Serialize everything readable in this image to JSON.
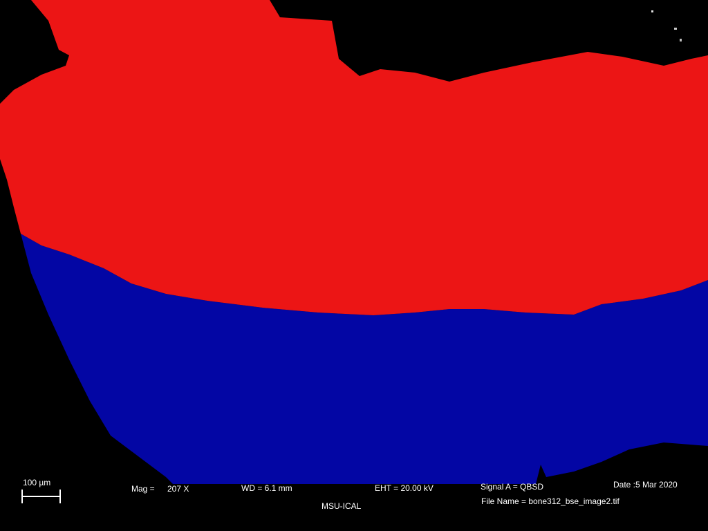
{
  "image": {
    "kind": "SEM backscattered-electron micrograph with segmentation overlay",
    "colors": {
      "background": "#000000",
      "region_upper": "#ec1515",
      "region_lower": "#0306a4",
      "text": "#ffffff"
    }
  },
  "databar": {
    "scale_label": "100 µm",
    "mag_label": "Mag =",
    "mag_value": "207 X",
    "wd": "WD =  6.1 mm",
    "eht": "EHT = 20.00 kV",
    "signal": "Signal A = QBSD",
    "date": "Date :5 Mar 2020",
    "file_name": "File Name = bone312_bse_image2.tif",
    "institution": "MSU-ICAL"
  }
}
